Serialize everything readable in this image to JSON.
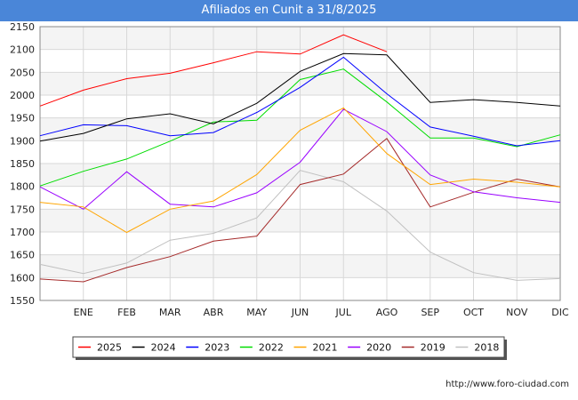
{
  "chart_data": {
    "type": "line",
    "title": "Afiliados en Cunit a 31/8/2025",
    "xlabel": "",
    "ylabel": "",
    "categories": [
      "",
      "ENE",
      "FEB",
      "MAR",
      "ABR",
      "MAY",
      "JUN",
      "JUL",
      "AGO",
      "SEP",
      "OCT",
      "NOV",
      "DIC"
    ],
    "ylim": [
      1550,
      2150
    ],
    "yticks": [
      1550,
      1600,
      1650,
      1700,
      1750,
      1800,
      1850,
      1900,
      1950,
      2000,
      2050,
      2100,
      2150
    ],
    "legend_position": "bottom",
    "series": [
      {
        "name": "2025",
        "color": "#ff0000",
        "values": [
          1976,
          2011,
          2036,
          2048,
          2071,
          2095,
          2090,
          2132,
          2095,
          null,
          null,
          null,
          null
        ]
      },
      {
        "name": "2024",
        "color": "#000000",
        "values": [
          1899,
          1916,
          1948,
          1959,
          1937,
          1982,
          2052,
          2091,
          2088,
          1984,
          1990,
          1984,
          1976
        ]
      },
      {
        "name": "2023",
        "color": "#0000ff",
        "values": [
          1911,
          1935,
          1933,
          1911,
          1918,
          1962,
          2017,
          2083,
          2003,
          1930,
          1910,
          1889,
          1900
        ]
      },
      {
        "name": "2022",
        "color": "#00dd00",
        "values": [
          1801,
          1833,
          1860,
          1899,
          1941,
          1945,
          2034,
          2057,
          1985,
          1906,
          1906,
          1887,
          1913
        ]
      },
      {
        "name": "2021",
        "color": "#ffa500",
        "values": [
          1765,
          1755,
          1699,
          1750,
          1768,
          1826,
          1923,
          1972,
          1872,
          1804,
          1816,
          1809,
          1799
        ]
      },
      {
        "name": "2020",
        "color": "#9900ff",
        "values": [
          1799,
          1750,
          1832,
          1761,
          1755,
          1786,
          1853,
          1969,
          1920,
          1825,
          1788,
          1775,
          1765
        ]
      },
      {
        "name": "2019",
        "color": "#a52a2a",
        "values": [
          1597,
          1591,
          1622,
          1646,
          1680,
          1691,
          1804,
          1827,
          1905,
          1755,
          1787,
          1816,
          1799
        ]
      },
      {
        "name": "2018",
        "color": "#c0c0c0",
        "values": [
          1629,
          1609,
          1632,
          1682,
          1697,
          1731,
          1835,
          1810,
          1746,
          1656,
          1611,
          1594,
          1598
        ]
      }
    ]
  },
  "footer": {
    "url": "http://www.foro-ciudad.com"
  }
}
